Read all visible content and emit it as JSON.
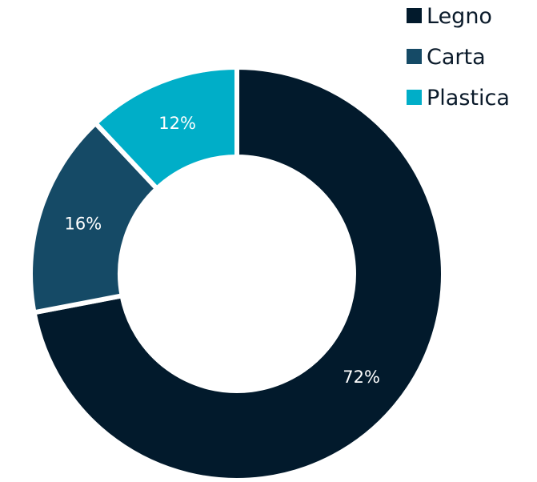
{
  "chart_data": {
    "type": "pie",
    "title": "",
    "categories": [
      "Legno",
      "Carta",
      "Plastica"
    ],
    "values": [
      72,
      16,
      12
    ],
    "value_labels": [
      "72%",
      "16%",
      "12%"
    ],
    "colors": [
      "#021a2c",
      "#154a66",
      "#00aec8"
    ],
    "donut": true,
    "legend": {
      "position": "top-right",
      "entries": [
        "Legno",
        "Carta",
        "Plastica"
      ]
    }
  }
}
